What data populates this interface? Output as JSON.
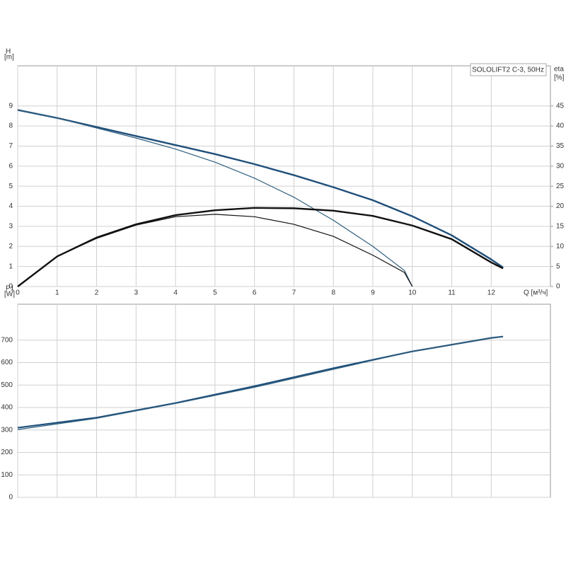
{
  "chart_data": [
    {
      "type": "line",
      "title": "SOLOLIFT2 C-3, 50Hz",
      "ylabel": "H",
      "yunit": "[m]",
      "y2label": "eta",
      "y2unit": "[%]",
      "xlabel": "Q [м³/ч]",
      "xlim": [
        0,
        13.5
      ],
      "xticks": [
        0,
        1,
        2,
        3,
        4,
        5,
        6,
        7,
        8,
        9,
        10,
        11,
        12
      ],
      "ylim": [
        0,
        11
      ],
      "yticks": [
        0,
        1,
        2,
        3,
        4,
        5,
        6,
        7,
        8,
        9
      ],
      "y2lim": [
        0,
        55
      ],
      "y2ticks": [
        0,
        5,
        10,
        15,
        20,
        25,
        30,
        35,
        40,
        45
      ],
      "grid": true,
      "series": [
        {
          "color": "#1f4f7a",
          "width": 2.4,
          "x": [
            0,
            1,
            2,
            3,
            4,
            5,
            6,
            7,
            8,
            9,
            10,
            11,
            12,
            12.3
          ],
          "values": [
            8.8,
            8.4,
            7.95,
            7.5,
            7.05,
            6.6,
            6.1,
            5.55,
            4.95,
            4.3,
            3.5,
            2.55,
            1.35,
            0.95
          ]
        },
        {
          "color": "#2f5f7f",
          "width": 1.2,
          "x": [
            0,
            1,
            2,
            3,
            4,
            5,
            6,
            7,
            8,
            9,
            9.8,
            10
          ],
          "values": [
            8.8,
            8.4,
            7.9,
            7.4,
            6.85,
            6.2,
            5.4,
            4.45,
            3.3,
            2.0,
            0.8,
            0
          ]
        },
        {
          "color": "#111111",
          "width": 2.4,
          "axis": "y2",
          "x": [
            0,
            1,
            2,
            3,
            4,
            5,
            6,
            7,
            8,
            9,
            10,
            11,
            12,
            12.3
          ],
          "values": [
            0,
            7.5,
            12.2,
            15.5,
            17.8,
            19,
            19.6,
            19.5,
            18.9,
            17.6,
            15.2,
            11.8,
            6,
            4.5
          ]
        },
        {
          "color": "#111111",
          "width": 1.2,
          "axis": "y2",
          "x": [
            0,
            1,
            2,
            3,
            4,
            5,
            6,
            7,
            8,
            9,
            9.8,
            10
          ],
          "values": [
            0,
            7.5,
            12,
            15.3,
            17.4,
            18,
            17.4,
            15.5,
            12.5,
            7.8,
            3.5,
            0
          ]
        }
      ]
    },
    {
      "type": "line",
      "ylabel": "P1",
      "yunit": "[W]",
      "xlim": [
        0,
        13.5
      ],
      "xticks": [
        0,
        1,
        2,
        3,
        4,
        5,
        6,
        7,
        8,
        9,
        10,
        11,
        12
      ],
      "ylim": [
        0,
        860
      ],
      "yticks": [
        0,
        100,
        200,
        300,
        400,
        500,
        600,
        700
      ],
      "grid": true,
      "series": [
        {
          "color": "#1f4f7a",
          "width": 2.2,
          "x": [
            0,
            2,
            4,
            6,
            8,
            10,
            12,
            12.3
          ],
          "values": [
            310,
            355,
            420,
            495,
            575,
            650,
            710,
            716
          ]
        },
        {
          "color": "#2f5f7f",
          "width": 1.2,
          "x": [
            0,
            2,
            4,
            6,
            8,
            10,
            12,
            12.3
          ],
          "values": [
            302,
            352,
            418,
            490,
            570,
            650,
            710,
            716
          ]
        }
      ]
    }
  ]
}
